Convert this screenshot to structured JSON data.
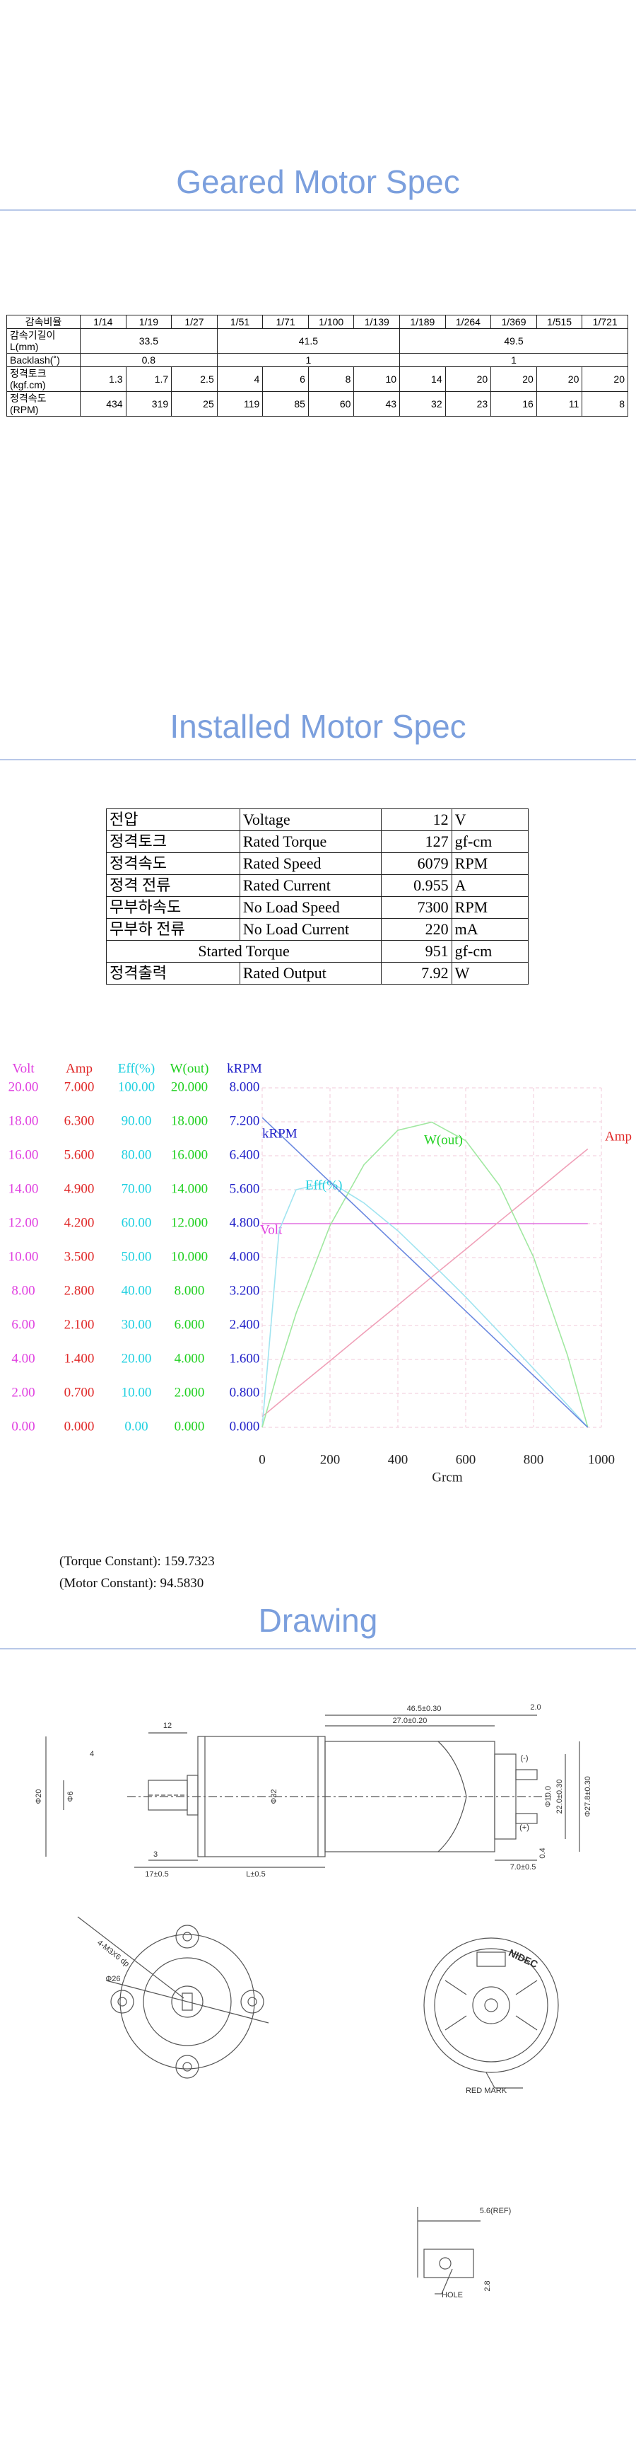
{
  "geared_spec": {
    "title": "Geared Motor Spec",
    "header": [
      "감속비율",
      "1/14",
      "1/19",
      "1/27",
      "1/51",
      "1/71",
      "1/100",
      "1/139",
      "1/189",
      "1/264",
      "1/369",
      "1/515",
      "1/721"
    ],
    "length": {
      "label": [
        "감속기길이",
        "L(mm)"
      ],
      "values": [
        33.5,
        41.5,
        49.5
      ]
    },
    "backlash": {
      "label": [
        "Backlash(˚)"
      ],
      "values": [
        0.8,
        1,
        1
      ]
    },
    "torque": {
      "label": [
        "정격토크",
        "(kgf.cm)"
      ],
      "values": [
        1.3,
        1.7,
        2.5,
        4,
        6,
        8,
        10,
        14,
        20,
        20,
        20,
        20
      ]
    },
    "speed": {
      "label": [
        "정격속도",
        "(RPM)"
      ],
      "values": [
        434,
        319,
        25,
        119,
        85,
        60,
        43,
        32,
        23,
        16,
        11,
        8
      ]
    }
  },
  "installed_spec": {
    "title": "Installed Motor Spec",
    "rows": [
      [
        "전압",
        "Voltage",
        12,
        "V"
      ],
      [
        "정격토크",
        "Rated Torque",
        127,
        "gf-cm"
      ],
      [
        "정격속도",
        "Rated Speed",
        6079,
        "RPM"
      ],
      [
        "정격 전류",
        "Rated Current",
        0.955,
        "A"
      ],
      [
        "무부하속도",
        "No Load Speed",
        7300,
        "RPM"
      ],
      [
        "무부하 전류",
        "No Load Current",
        220,
        "mA"
      ],
      [
        "Started Torque",
        951,
        "gf-cm"
      ],
      [
        "정격출력",
        "Rated Output",
        7.92,
        "W"
      ]
    ]
  },
  "chart_data": {
    "type": "line",
    "x_label": "Grcm",
    "x": [
      0,
      50,
      100,
      200,
      300,
      400,
      500,
      600,
      700,
      800,
      900,
      960
    ],
    "xlim": [
      0,
      1000
    ],
    "xticks": [
      0,
      200,
      400,
      600,
      800,
      1000
    ],
    "grid": true,
    "axes": [
      {
        "name": "Volt",
        "color": "#e040e0",
        "ylim": [
          0,
          20
        ],
        "yticks": [
          {
            "value": 0,
            "label": "0.00"
          },
          {
            "value": 2,
            "label": "2.00"
          },
          {
            "value": 4,
            "label": "4.00"
          },
          {
            "value": 6,
            "label": "6.00"
          },
          {
            "value": 8,
            "label": "8.00"
          },
          {
            "value": 10,
            "label": "10.00"
          },
          {
            "value": 12,
            "label": "12.00"
          },
          {
            "value": 14,
            "label": "14.00"
          },
          {
            "value": 16,
            "label": "16.00"
          },
          {
            "value": 18,
            "label": "18.00"
          },
          {
            "value": 20,
            "label": "20.00"
          }
        ]
      },
      {
        "name": "Amp",
        "color": "#e02828",
        "ylim": [
          0,
          7
        ],
        "yticks": [
          {
            "value": 0,
            "label": "0.000"
          },
          {
            "value": 0.7,
            "label": "0.700"
          },
          {
            "value": 1.4,
            "label": "1.400"
          },
          {
            "value": 2.1,
            "label": "2.100"
          },
          {
            "value": 2.8,
            "label": "2.800"
          },
          {
            "value": 3.5,
            "label": "3.500"
          },
          {
            "value": 4.2,
            "label": "4.200"
          },
          {
            "value": 4.9,
            "label": "4.900"
          },
          {
            "value": 5.6,
            "label": "5.600"
          },
          {
            "value": 6.3,
            "label": "6.300"
          },
          {
            "value": 7,
            "label": "7.000"
          }
        ]
      },
      {
        "name": "Eff(%)",
        "color": "#20d0e0",
        "ylim": [
          0,
          100
        ],
        "yticks": [
          {
            "value": 0,
            "label": "0.00"
          },
          {
            "value": 10,
            "label": "10.00"
          },
          {
            "value": 20,
            "label": "20.00"
          },
          {
            "value": 30,
            "label": "30.00"
          },
          {
            "value": 40,
            "label": "40.00"
          },
          {
            "value": 50,
            "label": "50.00"
          },
          {
            "value": 60,
            "label": "60.00"
          },
          {
            "value": 70,
            "label": "70.00"
          },
          {
            "value": 80,
            "label": "80.00"
          },
          {
            "value": 90,
            "label": "90.00"
          },
          {
            "value": 100,
            "label": "100.00"
          }
        ]
      },
      {
        "name": "W(out)",
        "color": "#20d020",
        "ylim": [
          0,
          20
        ],
        "yticks": [
          {
            "value": 0,
            "label": "0.000"
          },
          {
            "value": 2,
            "label": "2.000"
          },
          {
            "value": 4,
            "label": "4.000"
          },
          {
            "value": 6,
            "label": "6.000"
          },
          {
            "value": 8,
            "label": "8.000"
          },
          {
            "value": 10,
            "label": "10.000"
          },
          {
            "value": 12,
            "label": "12.000"
          },
          {
            "value": 14,
            "label": "14.000"
          },
          {
            "value": 16,
            "label": "16.000"
          },
          {
            "value": 18,
            "label": "18.000"
          },
          {
            "value": 20,
            "label": "20.000"
          }
        ]
      },
      {
        "name": "kRPM",
        "color": "#2020c8",
        "ylim": [
          0,
          8
        ],
        "yticks": [
          {
            "value": 0,
            "label": "0.000"
          },
          {
            "value": 0.8,
            "label": "0.800"
          },
          {
            "value": 1.6,
            "label": "1.600"
          },
          {
            "value": 2.4,
            "label": "2.400"
          },
          {
            "value": 3.2,
            "label": "3.200"
          },
          {
            "value": 4,
            "label": "4.000"
          },
          {
            "value": 4.8,
            "label": "4.800"
          },
          {
            "value": 5.6,
            "label": "5.600"
          },
          {
            "value": 6.4,
            "label": "6.400"
          },
          {
            "value": 7.2,
            "label": "7.200"
          },
          {
            "value": 8,
            "label": "8.000"
          }
        ]
      }
    ],
    "series": [
      {
        "name": "Volt",
        "color": "#e070e0",
        "axis": 0,
        "values": [
          12,
          12,
          12,
          12,
          12,
          12,
          12,
          12,
          12,
          12,
          12,
          12
        ]
      },
      {
        "name": "Amp",
        "color": "#f0a0b8",
        "axis": 1,
        "values": [
          0.22,
          0.51,
          0.8,
          1.37,
          1.95,
          2.52,
          3.1,
          3.67,
          4.25,
          4.82,
          5.4,
          5.74
        ]
      },
      {
        "name": "Eff(%)",
        "color": "#a0e4f0",
        "axis": 2,
        "values": [
          0,
          58,
          70,
          72.3,
          66.1,
          57.9,
          48.3,
          38.4,
          27.9,
          17.3,
          6.6,
          0
        ]
      },
      {
        "name": "W(out)",
        "color": "#a0e8a0",
        "axis": 3,
        "values": [
          0,
          3.55,
          6.72,
          11.88,
          15.47,
          17.5,
          17.98,
          16.89,
          14.24,
          10.03,
          4.25,
          0
        ]
      },
      {
        "name": "kRPM",
        "color": "#6a88e0",
        "axis": 4,
        "values": [
          7.3,
          6.92,
          6.54,
          5.78,
          5.02,
          4.26,
          3.5,
          2.74,
          1.98,
          1.22,
          0.46,
          0
        ]
      }
    ]
  },
  "notes": [
    "(Torque Constant): 159.7323",
    "(Motor Constant): 94.5830"
  ],
  "drawing": {
    "title": "Drawing",
    "labels": [
      "12",
      "4",
      "Φ20",
      "Φ6",
      "Φ32",
      "46.5±0.30",
      "27.0±0.20",
      "2.0",
      "(-)",
      "(+)",
      "Φ10.0",
      "22.0±0.30",
      "Φ27.8±0.30",
      "3",
      "17±0.5",
      "L±0.5",
      "7.0±0.5",
      "0.4",
      "4-M3X6 dp",
      "Φ26",
      "NIDEC",
      "RED MARK",
      "5.6(REF)",
      "HOLE",
      "2.8"
    ]
  }
}
